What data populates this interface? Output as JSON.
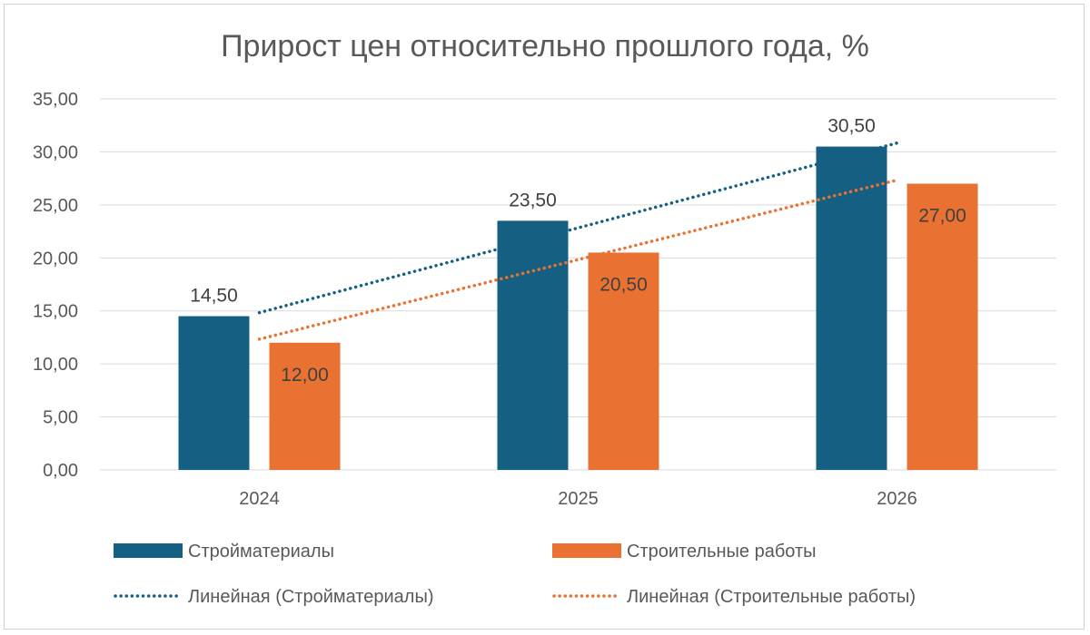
{
  "chart_data": {
    "type": "bar",
    "title": "Прирост цен относительно прошлого года, %",
    "categories": [
      "2024",
      "2025",
      "2026"
    ],
    "series": [
      {
        "name": "Стройматериалы",
        "values": [
          14.5,
          23.5,
          30.5
        ],
        "labels": [
          "14,50",
          "23,50",
          "30,50"
        ],
        "color": "#156082"
      },
      {
        "name": "Строительные работы",
        "values": [
          12.0,
          20.5,
          27.0
        ],
        "labels": [
          "12,00",
          "20,50",
          "27,00"
        ],
        "color": "#E97132"
      }
    ],
    "trendlines": [
      {
        "name": "Линейная (Стройматериалы)",
        "type": "linear",
        "series": "Стройматериалы",
        "color": "#156082"
      },
      {
        "name": "Линейная (Строительные работы)",
        "type": "linear",
        "series": "Строительные работы",
        "color": "#E97132"
      }
    ],
    "ylim": [
      0,
      35
    ],
    "yticks": [
      "0,00",
      "5,00",
      "10,00",
      "15,00",
      "20,00",
      "25,00",
      "30,00",
      "35,00"
    ],
    "grid": true,
    "legend": "bottom",
    "xlabel": "",
    "ylabel": ""
  }
}
